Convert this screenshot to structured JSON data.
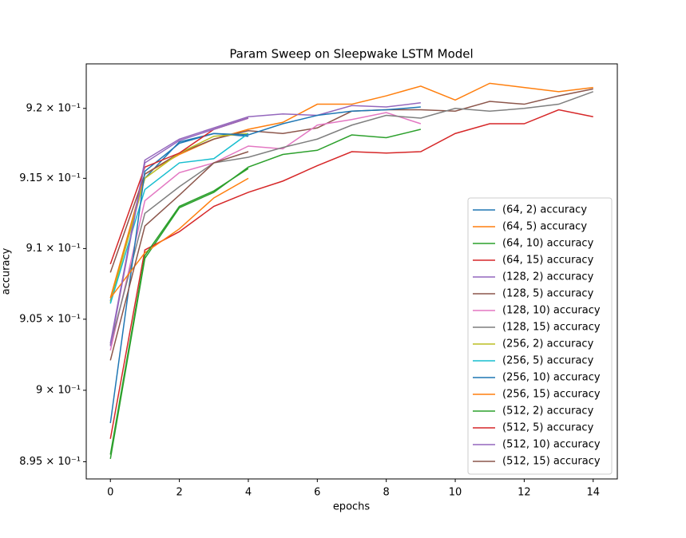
{
  "chart_data": {
    "type": "line",
    "title": "Param Sweep on Sleepwake LSTM Model",
    "x_label": "epochs",
    "y_label": "accuracy",
    "x": [
      0,
      1,
      2,
      3,
      4,
      5,
      6,
      7,
      8,
      9,
      10,
      11,
      12,
      13,
      14
    ],
    "xlim": [
      -0.7,
      14.7
    ],
    "xticks": [
      0,
      2,
      4,
      6,
      8,
      10,
      12,
      14
    ],
    "ylim": [
      0.8938,
      0.9232
    ],
    "log_y": true,
    "yticks": [
      {
        "value": 0.895,
        "label": "8.95 × 10⁻¹"
      },
      {
        "value": 0.9,
        "label": "9 × 10⁻¹"
      },
      {
        "value": 0.905,
        "label": "9.05 × 10⁻¹"
      },
      {
        "value": 0.91,
        "label": "9.1 × 10⁻¹"
      },
      {
        "value": 0.915,
        "label": "9.15 × 10⁻¹"
      },
      {
        "value": 0.92,
        "label": "9.2 × 10⁻¹"
      }
    ],
    "legend": "lower right",
    "series": [
      {
        "name": "(64, 2) accuracy",
        "color": "#1f77b4",
        "values": [
          0.9063,
          0.915,
          0.9176,
          0.9182,
          0.918,
          null,
          null,
          null,
          null,
          null,
          null,
          null,
          null,
          null,
          null
        ]
      },
      {
        "name": "(64, 5) accuracy",
        "color": "#ff7f0e",
        "values": [
          0.9065,
          0.9153,
          0.9167,
          0.9178,
          0.9185,
          0.919,
          0.9203,
          0.9203,
          0.9209,
          0.9216,
          0.9206,
          0.9218,
          0.9215,
          0.9212,
          0.9215
        ]
      },
      {
        "name": "(64, 10) accuracy",
        "color": "#2ca02c",
        "values": [
          0.8952,
          0.9093,
          0.9129,
          0.914,
          0.9158,
          0.9167,
          0.917,
          0.9181,
          0.9179,
          0.9185,
          null,
          null,
          null,
          null,
          null
        ]
      },
      {
        "name": "(64, 15) accuracy",
        "color": "#d62728",
        "values": [
          0.8966,
          0.9099,
          0.9112,
          0.913,
          0.914,
          0.9148,
          0.9159,
          0.9169,
          0.9168,
          0.9169,
          0.9182,
          0.9189,
          0.9189,
          0.9199,
          0.9194
        ]
      },
      {
        "name": "(128, 2) accuracy",
        "color": "#9467bd",
        "values": [
          0.9033,
          0.9163,
          0.9178,
          0.9186,
          0.9194,
          0.9196,
          0.9195,
          0.9202,
          0.9201,
          0.9204,
          null,
          null,
          null,
          null,
          null
        ]
      },
      {
        "name": "(128, 5) accuracy",
        "color": "#8c564b",
        "values": [
          0.9083,
          0.9153,
          0.9168,
          0.9178,
          0.9184,
          0.9182,
          0.9186,
          0.9198,
          0.9199,
          0.9199,
          0.9198,
          0.9205,
          0.9203,
          0.9209,
          0.9214
        ]
      },
      {
        "name": "(128, 10) accuracy",
        "color": "#e377c2",
        "values": [
          0.9028,
          0.9134,
          0.9154,
          0.9161,
          0.9173,
          0.9171,
          0.9188,
          0.9192,
          0.9197,
          0.9189,
          null,
          null,
          null,
          null,
          null
        ]
      },
      {
        "name": "(128, 15) accuracy",
        "color": "#7f7f7f",
        "values": [
          0.9032,
          0.9125,
          0.9144,
          0.9161,
          0.9165,
          0.9172,
          0.9178,
          0.9188,
          0.9195,
          0.9193,
          0.92,
          0.9198,
          0.92,
          0.9203,
          0.9212
        ]
      },
      {
        "name": "(256, 2) accuracy",
        "color": "#bcbd22",
        "values": [
          0.9062,
          0.915,
          0.9168,
          0.918,
          0.9182,
          null,
          null,
          null,
          null,
          null,
          null,
          null,
          null,
          null,
          null
        ]
      },
      {
        "name": "(256, 5) accuracy",
        "color": "#17becf",
        "values": [
          0.9061,
          0.9142,
          0.9161,
          0.9164,
          0.9182,
          null,
          null,
          null,
          null,
          null,
          null,
          null,
          null,
          null,
          null
        ]
      },
      {
        "name": "(256, 10) accuracy",
        "color": "#1f77b4",
        "values": [
          0.8977,
          0.9155,
          0.9175,
          0.9182,
          0.9181,
          0.9189,
          0.9195,
          0.9198,
          0.9199,
          0.9201,
          null,
          null,
          null,
          null,
          null
        ]
      },
      {
        "name": "(256, 15) accuracy",
        "color": "#ff7f0e",
        "values": [
          0.9065,
          0.9097,
          0.9114,
          0.9136,
          0.915,
          null,
          null,
          null,
          null,
          null,
          null,
          null,
          null,
          null,
          null
        ]
      },
      {
        "name": "(512, 2) accuracy",
        "color": "#2ca02c",
        "values": [
          0.8955,
          0.9095,
          0.913,
          0.9141,
          0.9157,
          null,
          null,
          null,
          null,
          null,
          null,
          null,
          null,
          null,
          null
        ]
      },
      {
        "name": "(512, 5) accuracy",
        "color": "#d62728",
        "values": [
          0.9089,
          0.9158,
          0.9168,
          0.9185,
          0.9193,
          null,
          null,
          null,
          null,
          null,
          null,
          null,
          null,
          null,
          null
        ]
      },
      {
        "name": "(512, 10) accuracy",
        "color": "#9467bd",
        "values": [
          0.9031,
          0.9161,
          0.9177,
          0.9185,
          0.9193,
          null,
          null,
          null,
          null,
          null,
          null,
          null,
          null,
          null,
          null
        ]
      },
      {
        "name": "(512, 15) accuracy",
        "color": "#8c564b",
        "values": [
          0.9021,
          0.9116,
          0.9138,
          0.9161,
          0.9169,
          null,
          null,
          null,
          null,
          null,
          null,
          null,
          null,
          null,
          null
        ]
      }
    ]
  }
}
